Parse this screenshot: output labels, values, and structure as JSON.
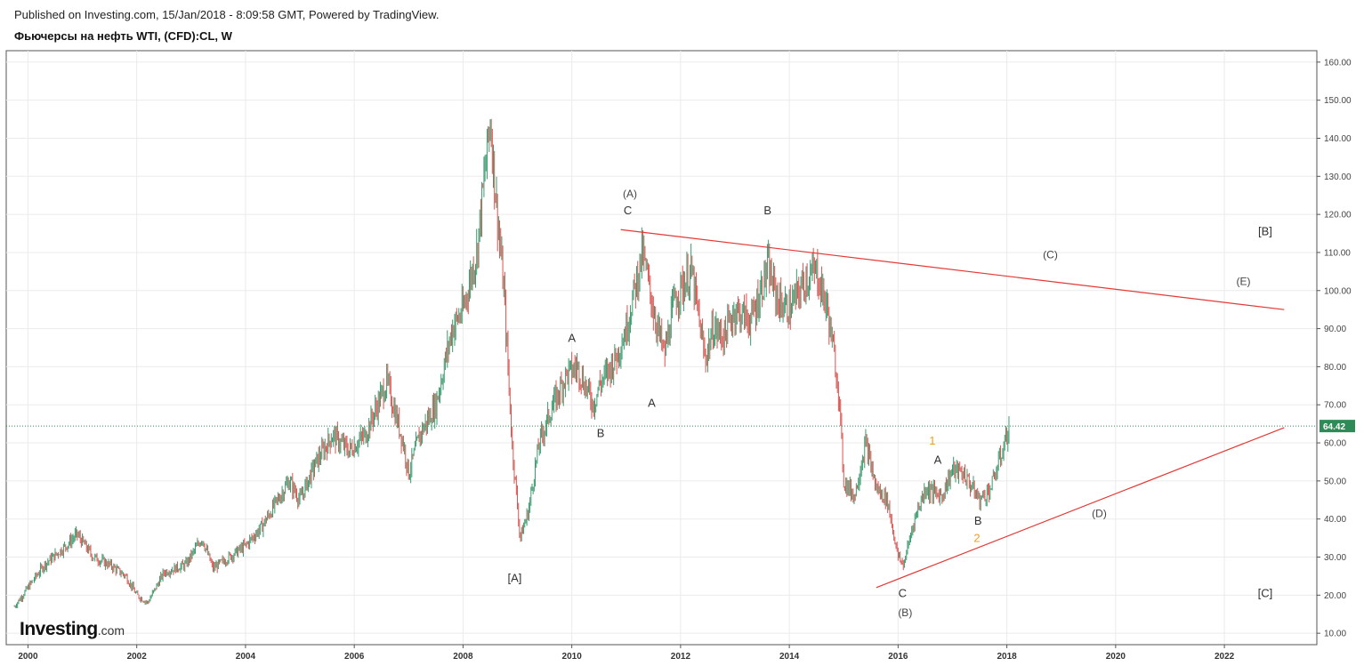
{
  "header": {
    "published": "Published on Investing.com, 15/Jan/2018 - 8:09:58 GMT, Powered by TradingView.",
    "title": "Фьючерсы на нефть WTI, (CFD):CL, W"
  },
  "logo": {
    "main": "Investing",
    "suffix": ".com"
  },
  "chart_data": {
    "type": "candlestick",
    "title": "Фьючерсы на нефть WTI, (CFD):CL, W",
    "yticks": [
      "10.00",
      "20.00",
      "30.00",
      "40.00",
      "50.00",
      "60.00",
      "70.00",
      "80.00",
      "90.00",
      "100.00",
      "110.00",
      "120.00",
      "130.00",
      "140.00",
      "150.00",
      "160.00"
    ],
    "xticks": [
      "2000",
      "2002",
      "2004",
      "2006",
      "2008",
      "2010",
      "2012",
      "2014",
      "2016",
      "2018",
      "2020",
      "2022"
    ],
    "ylim": [
      7,
      163
    ],
    "xlim": [
      1999.6,
      2023.7
    ],
    "last_price": {
      "value": 64.42,
      "label": "64.42",
      "color": "#2e8b57"
    },
    "colors": {
      "up": "#3c9a6e",
      "down": "#d9534f",
      "trendline": "#e53935",
      "grid": "#ebebeb"
    },
    "series_path": [
      [
        1999.75,
        17
      ],
      [
        2000.0,
        22
      ],
      [
        2000.3,
        28
      ],
      [
        2000.7,
        33
      ],
      [
        2000.9,
        36
      ],
      [
        2001.2,
        30
      ],
      [
        2001.5,
        28
      ],
      [
        2001.8,
        25
      ],
      [
        2002.0,
        20
      ],
      [
        2002.2,
        18
      ],
      [
        2002.5,
        26
      ],
      [
        2002.9,
        28
      ],
      [
        2003.2,
        35
      ],
      [
        2003.4,
        27
      ],
      [
        2003.7,
        30
      ],
      [
        2004.0,
        33
      ],
      [
        2004.3,
        38
      ],
      [
        2004.8,
        50
      ],
      [
        2005.0,
        45
      ],
      [
        2005.3,
        55
      ],
      [
        2005.6,
        62
      ],
      [
        2005.9,
        58
      ],
      [
        2006.2,
        62
      ],
      [
        2006.6,
        76
      ],
      [
        2006.9,
        60
      ],
      [
        2007.0,
        52
      ],
      [
        2007.2,
        62
      ],
      [
        2007.5,
        70
      ],
      [
        2007.8,
        90
      ],
      [
        2008.0,
        95
      ],
      [
        2008.25,
        110
      ],
      [
        2008.5,
        145
      ],
      [
        2008.6,
        125
      ],
      [
        2008.75,
        100
      ],
      [
        2008.9,
        60
      ],
      [
        2009.05,
        35
      ],
      [
        2009.2,
        42
      ],
      [
        2009.4,
        60
      ],
      [
        2009.6,
        68
      ],
      [
        2009.9,
        78
      ],
      [
        2010.1,
        80
      ],
      [
        2010.4,
        70
      ],
      [
        2010.5,
        75
      ],
      [
        2010.8,
        82
      ],
      [
        2011.0,
        90
      ],
      [
        2011.3,
        110
      ],
      [
        2011.5,
        95
      ],
      [
        2011.7,
        83
      ],
      [
        2011.9,
        98
      ],
      [
        2012.2,
        105
      ],
      [
        2012.45,
        82
      ],
      [
        2012.6,
        90
      ],
      [
        2012.8,
        88
      ],
      [
        2013.0,
        95
      ],
      [
        2013.3,
        92
      ],
      [
        2013.6,
        106
      ],
      [
        2013.8,
        97
      ],
      [
        2014.0,
        95
      ],
      [
        2014.3,
        103
      ],
      [
        2014.5,
        105
      ],
      [
        2014.7,
        95
      ],
      [
        2014.9,
        75
      ],
      [
        2015.0,
        50
      ],
      [
        2015.2,
        46
      ],
      [
        2015.4,
        60
      ],
      [
        2015.6,
        48
      ],
      [
        2015.8,
        45
      ],
      [
        2016.0,
        30
      ],
      [
        2016.1,
        28
      ],
      [
        2016.3,
        40
      ],
      [
        2016.5,
        48
      ],
      [
        2016.8,
        46
      ],
      [
        2017.0,
        53
      ],
      [
        2017.2,
        52
      ],
      [
        2017.5,
        45
      ],
      [
        2017.7,
        48
      ],
      [
        2017.9,
        57
      ],
      [
        2018.04,
        64.4
      ]
    ],
    "trendlines": [
      {
        "from": [
          2010.9,
          116
        ],
        "to": [
          2023.1,
          95
        ]
      },
      {
        "from": [
          2015.6,
          22
        ],
        "to": [
          2023.1,
          64
        ]
      }
    ],
    "labels": [
      {
        "text": "(A)",
        "x": 2011.07,
        "y": 124.5,
        "style": "small"
      },
      {
        "text": "C",
        "x": 2011.03,
        "y": 120,
        "style": "normal"
      },
      {
        "text": "B",
        "x": 2013.6,
        "y": 120,
        "style": "normal"
      },
      {
        "text": "A",
        "x": 2010.0,
        "y": 86.5,
        "style": "normal"
      },
      {
        "text": "A",
        "x": 2011.47,
        "y": 69.5,
        "style": "normal"
      },
      {
        "text": "B",
        "x": 2010.53,
        "y": 61.5,
        "style": "normal"
      },
      {
        "text": "[A]",
        "x": 2008.95,
        "y": 23.5,
        "style": "normal"
      },
      {
        "text": "[B]",
        "x": 2022.75,
        "y": 114.5,
        "style": "normal"
      },
      {
        "text": "(C)",
        "x": 2018.8,
        "y": 108.5,
        "style": "small"
      },
      {
        "text": "(E)",
        "x": 2022.35,
        "y": 101.5,
        "style": "small"
      },
      {
        "text": "(D)",
        "x": 2019.7,
        "y": 40.5,
        "style": "small"
      },
      {
        "text": "[C]",
        "x": 2022.75,
        "y": 19.5,
        "style": "normal"
      },
      {
        "text": "1",
        "x": 2016.63,
        "y": 59.5,
        "style": "orange"
      },
      {
        "text": "A",
        "x": 2016.73,
        "y": 54.5,
        "style": "normal"
      },
      {
        "text": "B",
        "x": 2017.47,
        "y": 38.5,
        "style": "normal"
      },
      {
        "text": "2",
        "x": 2017.45,
        "y": 34,
        "style": "orange"
      },
      {
        "text": "C",
        "x": 2016.08,
        "y": 19.5,
        "style": "normal"
      },
      {
        "text": "(B)",
        "x": 2016.13,
        "y": 14.5,
        "style": "small"
      }
    ]
  }
}
